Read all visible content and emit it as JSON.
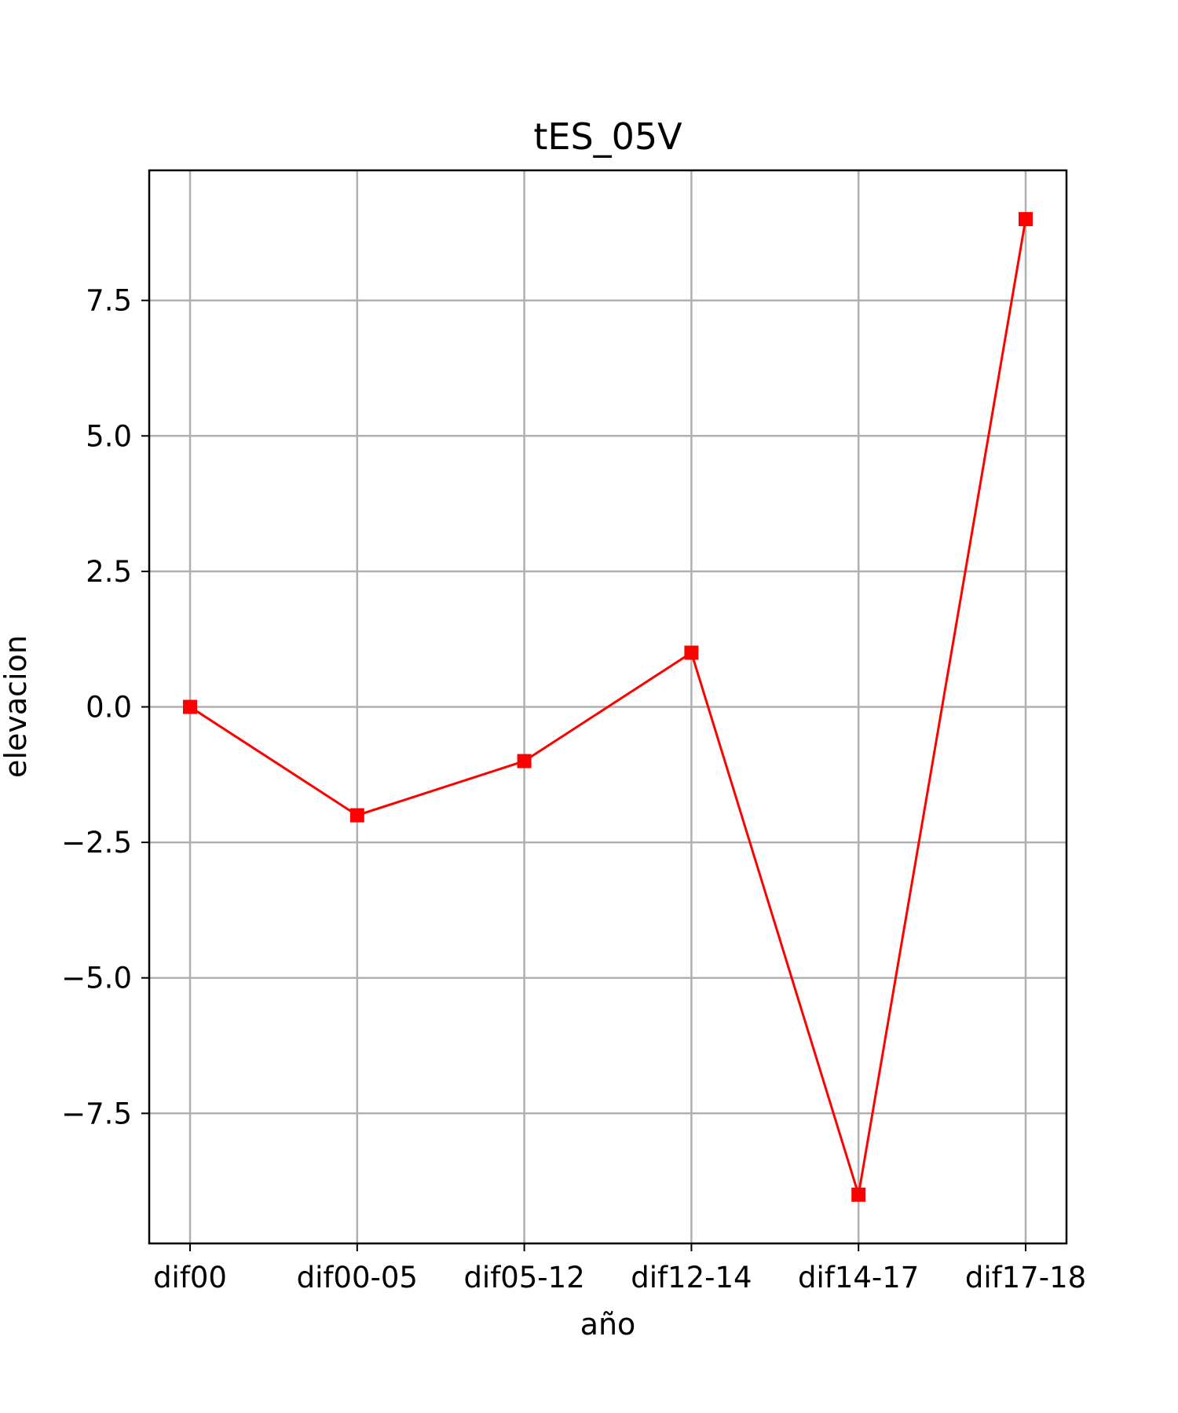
{
  "chart_data": {
    "type": "line",
    "title": "tES_05V",
    "xlabel": "año",
    "ylabel": "elevacion",
    "categories": [
      "dif00",
      "dif00-05",
      "dif05-12",
      "dif12-14",
      "dif14-17",
      "dif17-18"
    ],
    "series": [
      {
        "values": [
          0,
          -2,
          -1,
          1,
          -9,
          9
        ],
        "color": "#ff0000",
        "marker": "square"
      }
    ],
    "ylim": [
      -9.9,
      9.9
    ],
    "yticks": [
      -7.5,
      -5.0,
      -2.5,
      0.0,
      2.5,
      5.0,
      7.5
    ],
    "ytick_labels": [
      "−7.5",
      "−5.0",
      "−2.5",
      "0.0",
      "2.5",
      "5.0",
      "7.5"
    ],
    "grid": true,
    "legend": "none"
  }
}
